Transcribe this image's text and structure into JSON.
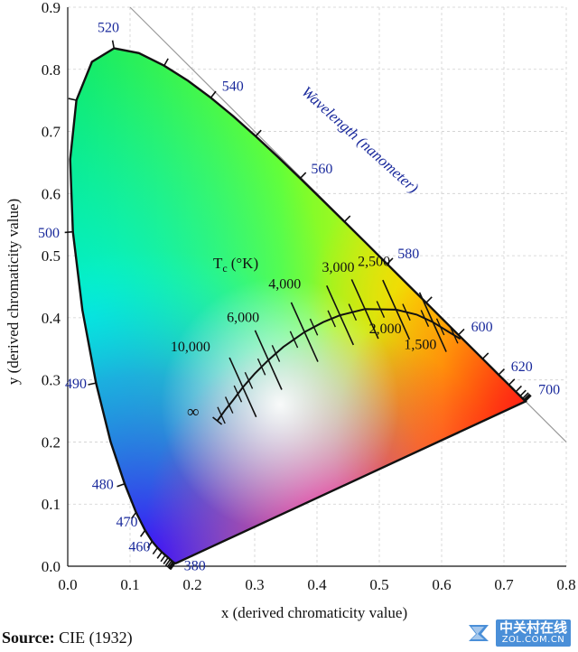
{
  "diagram": {
    "title_wavelength": "Wavelength (nanometer)",
    "xlabel": "x (derived chromaticity value)",
    "ylabel": "y (derived chromaticity value)",
    "x_ticks": [
      "0.0",
      "0.1",
      "0.2",
      "0.3",
      "0.4",
      "0.5",
      "0.6",
      "0.7",
      "0.8"
    ],
    "y_ticks": [
      "0.0",
      "0.1",
      "0.2",
      "0.3",
      "0.4",
      "0.5",
      "0.6",
      "0.7",
      "0.8",
      "0.9"
    ],
    "xlim": [
      0,
      0.8
    ],
    "ylim": [
      0,
      0.9
    ],
    "wavelength_labels": [
      {
        "text": "380",
        "x": 0.175,
        "y": 0.005
      },
      {
        "text": "460",
        "x": 0.144,
        "y": 0.03
      },
      {
        "text": "470",
        "x": 0.124,
        "y": 0.058
      },
      {
        "text": "480",
        "x": 0.091,
        "y": 0.133
      },
      {
        "text": "490",
        "x": 0.045,
        "y": 0.295
      },
      {
        "text": "500",
        "x": 0.008,
        "y": 0.538
      },
      {
        "text": "520",
        "x": 0.074,
        "y": 0.834
      },
      {
        "text": "540",
        "x": 0.23,
        "y": 0.754
      },
      {
        "text": "560",
        "x": 0.373,
        "y": 0.624
      },
      {
        "text": "580",
        "x": 0.512,
        "y": 0.487
      },
      {
        "text": "600",
        "x": 0.627,
        "y": 0.372
      },
      {
        "text": "620",
        "x": 0.691,
        "y": 0.308
      },
      {
        "text": "700",
        "x": 0.735,
        "y": 0.265
      }
    ],
    "planckian_label": "T",
    "planckian_label_sub": "c",
    "planckian_label_unit": "(°K)",
    "temperatures": [
      {
        "text": "∞",
        "x": 0.24,
        "y": 0.234
      },
      {
        "text": "10,000",
        "x": 0.281,
        "y": 0.288
      },
      {
        "text": "6,000",
        "x": 0.322,
        "y": 0.332
      },
      {
        "text": "4,000",
        "x": 0.38,
        "y": 0.377
      },
      {
        "text": "3,000",
        "x": 0.437,
        "y": 0.404
      },
      {
        "text": "2,500",
        "x": 0.477,
        "y": 0.414
      },
      {
        "text": "2,000",
        "x": 0.527,
        "y": 0.413
      },
      {
        "text": "1,500",
        "x": 0.586,
        "y": 0.393
      }
    ]
  },
  "source": {
    "label": "Source:",
    "value": "CIE (1932)"
  },
  "watermark": {
    "cn": "中关村在线",
    "en": "ZOL.COM.CN"
  },
  "colors": {
    "axis": "#111111",
    "wavelength_text": "#1a2a9c",
    "watermark_bg": "#4a8fd8"
  }
}
